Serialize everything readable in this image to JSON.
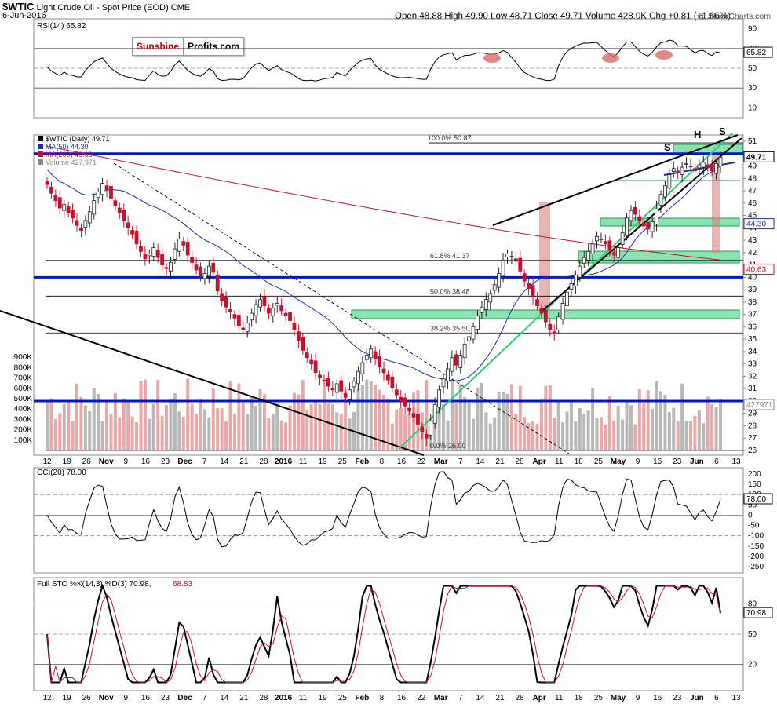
{
  "header": {
    "title": "$WTIC",
    "subtitle": "Light Crude Oil - Spot Price (EOD)",
    "exchange": "CME",
    "date": "6-Jun-2016",
    "stats": "Open 48.88  High 49.90  Low 48.71  Close 49.71  Volume 428.0K  Chg +0.81 (+1.66%)",
    "watermark": "@ StockCharts.com",
    "brand_a": "Sunshine",
    "brand_b": "Profits.com"
  },
  "colors": {
    "up": "#222222",
    "down": "#c8102e",
    "ma50": "#1f2fa0",
    "ma200": "#c8102e",
    "level": "#0018c8",
    "zone": "#2ecc71",
    "vol_up": "#b8b8b8",
    "vol_down": "#e8a8a8",
    "osc_fill_hi": "#3d6b3d",
    "osc_fill_lo": "#7a3a3a"
  },
  "rsi": {
    "label": "RSI(14) 65.82",
    "last": "65.82",
    "ticks": [
      "90",
      "70",
      "50",
      "30",
      "10"
    ]
  },
  "price_panel": {
    "legend": [
      "$WTIC (Daily) 49.71",
      "MA(50) 44.30",
      "MA(200) 40.63",
      "Volume 427,971"
    ],
    "ticks": [
      "51",
      "50",
      "49",
      "48",
      "47",
      "46",
      "45",
      "44",
      "43",
      "42",
      "41",
      "40",
      "39",
      "38",
      "37",
      "36",
      "35",
      "34",
      "33",
      "32",
      "31",
      "30",
      "29",
      "28",
      "27",
      "26"
    ],
    "right_tags": [
      "49.71",
      "44.30",
      "40.63",
      "427971"
    ],
    "volume_ticks": [
      "900K",
      "800K",
      "700K",
      "600K",
      "500K",
      "400K",
      "300K",
      "200K",
      "100K"
    ],
    "fib": [
      "100.0% 50.87",
      "61.8% 41.37",
      "50.0% 38.48",
      "38.2% 35.50",
      "0.0% 26.00"
    ],
    "pattern": [
      "S",
      "H",
      "S"
    ]
  },
  "cci": {
    "label": "CCI(20) 78.00",
    "last": "78.00",
    "ticks": [
      "200",
      "150",
      "100",
      "50",
      "0",
      "-50",
      "-100",
      "-150",
      "-200",
      "-250"
    ]
  },
  "sto": {
    "label_a": "Full STO %K(14,3) %D(3) 70.98,",
    "label_b": "68.83",
    "last": "70.98",
    "ticks": [
      "80",
      "50",
      "20"
    ]
  },
  "xaxis": [
    "12",
    "19",
    "26",
    "Nov",
    "9",
    "16",
    "23",
    "Dec",
    "7",
    "14",
    "21",
    "28",
    "2016",
    "11",
    "19",
    "25",
    "Feb",
    "8",
    "16",
    "22",
    "Mar",
    "7",
    "14",
    "21",
    "28",
    "Apr",
    "11",
    "18",
    "25",
    "May",
    "9",
    "16",
    "23",
    "Jun",
    "6",
    "13"
  ],
  "chart_data": {
    "type": "candlestick",
    "title": "$WTIC Light Crude Oil - Spot Price (EOD)",
    "close_last": 49.71,
    "ohlc_last": {
      "open": 48.88,
      "high": 49.9,
      "low": 48.71,
      "close": 49.71
    },
    "volume_last": 427971,
    "ma50": 44.3,
    "ma200": 40.63,
    "ylim": [
      26,
      51
    ],
    "rsi14": 65.82,
    "cci20": 78.0,
    "sto_k": 70.98,
    "sto_d": 68.83,
    "key_levels": [
      50.0,
      40.0,
      30.0
    ],
    "fibonacci": {
      "100.0%": 50.87,
      "61.8%": 41.37,
      "50.0%": 38.48,
      "38.2%": 35.5,
      "0.0%": 26.0
    },
    "closes": [
      47.5,
      46.8,
      46.2,
      45.6,
      45.9,
      45.2,
      44.8,
      44.2,
      43.8,
      44.6,
      45.3,
      46.2,
      46.9,
      47.6,
      47.1,
      46.4,
      45.8,
      45.2,
      44.6,
      44.0,
      43.5,
      42.7,
      42.1,
      41.5,
      41.9,
      42.4,
      41.6,
      41.0,
      40.7,
      41.2,
      42.3,
      43.1,
      42.6,
      41.8,
      41.2,
      40.6,
      40.1,
      40.3,
      40.9,
      40.4,
      38.9,
      38.1,
      37.6,
      37.2,
      36.7,
      36.1,
      35.8,
      36.3,
      37.1,
      37.8,
      38.2,
      37.7,
      37.1,
      37.5,
      37.9,
      37.3,
      36.9,
      36.5,
      35.8,
      34.9,
      34.1,
      33.5,
      33.0,
      32.3,
      31.9,
      31.6,
      31.2,
      30.9,
      31.4,
      30.8,
      30.3,
      30.9,
      31.6,
      32.4,
      33.1,
      33.7,
      34.2,
      33.4,
      32.8,
      32.3,
      31.7,
      31.1,
      30.5,
      30.0,
      29.6,
      29.2,
      28.7,
      28.1,
      27.5,
      27.0,
      28.4,
      29.7,
      30.9,
      31.8,
      32.6,
      33.5,
      32.9,
      33.7,
      34.6,
      35.2,
      36.0,
      36.9,
      37.6,
      38.2,
      38.7,
      39.4,
      40.3,
      41.4,
      41.9,
      41.7,
      41.3,
      40.5,
      39.7,
      39.1,
      38.4,
      37.7,
      37.1,
      36.4,
      35.8,
      35.5,
      36.8,
      37.9,
      38.8,
      39.5,
      40.2,
      40.9,
      41.6,
      42.1,
      42.7,
      43.3,
      43.1,
      42.7,
      42.2,
      41.8,
      42.4,
      43.6,
      44.8,
      45.4,
      45.1,
      44.6,
      44.2,
      43.9,
      44.5,
      45.6,
      46.7,
      47.4,
      48.3,
      48.8,
      48.5,
      48.9,
      49.2,
      49.0,
      48.6,
      49.1,
      49.3,
      48.9,
      48.6,
      49.2,
      49.71
    ]
  }
}
